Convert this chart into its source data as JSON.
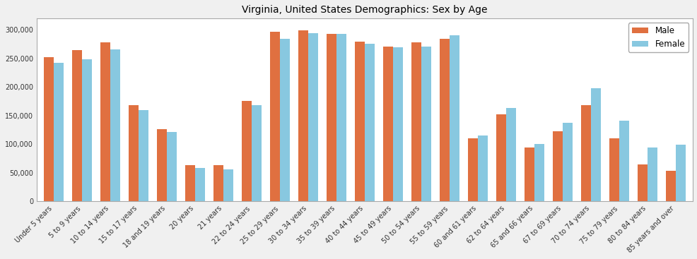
{
  "title": "Virginia, United States Demographics: Sex by Age",
  "categories": [
    "Under 5 years",
    "5 to 9 years",
    "10 to 14 years",
    "15 to 17 years",
    "18 and 19 years",
    "20 years",
    "21 years",
    "22 to 24 years",
    "25 to 29 years",
    "30 to 34 years",
    "35 to 39 years",
    "40 to 44 years",
    "45 to 49 years",
    "50 to 54 years",
    "55 to 59 years",
    "60 and 61 years",
    "62 to 64 years",
    "65 and 66 years",
    "67 to 69 years",
    "70 to 74 years",
    "75 to 79 years",
    "80 to 84 years",
    "85 years and over"
  ],
  "male": [
    253000,
    265000,
    278000,
    168000,
    127000,
    63000,
    63000,
    176000,
    297000,
    299000,
    293000,
    279000,
    271000,
    278000,
    285000,
    110000,
    152000,
    94000,
    123000,
    168000,
    110000,
    65000,
    54000
  ],
  "female": [
    242000,
    249000,
    266000,
    160000,
    122000,
    58000,
    56000,
    169000,
    285000,
    294000,
    293000,
    276000,
    270000,
    271000,
    291000,
    115000,
    164000,
    101000,
    138000,
    198000,
    141000,
    94000,
    99000
  ],
  "male_color": "#E07040",
  "female_color": "#88C8E0",
  "bar_width": 0.35,
  "ylim": [
    0,
    320000
  ],
  "yticks": [
    0,
    50000,
    100000,
    150000,
    200000,
    250000,
    300000
  ],
  "ytick_labels": [
    "0",
    "50,000",
    "100,000",
    "150,000",
    "200,000",
    "250,000",
    "300,000"
  ],
  "legend_labels": [
    "Male",
    "Female"
  ],
  "title_fontsize": 10,
  "tick_fontsize": 7,
  "bg_color": "#f0f0f0",
  "plot_bg_color": "#ffffff"
}
